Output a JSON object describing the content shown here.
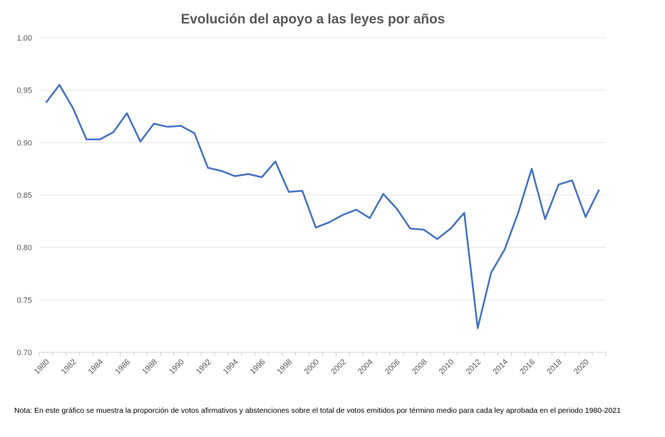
{
  "chart_data": {
    "type": "line",
    "title": "Evolución del apoyo a las leyes por años",
    "xlabel": "",
    "ylabel": "",
    "ylim": [
      0.7,
      1.0
    ],
    "xlim": [
      1980,
      2021
    ],
    "yticks": [
      "1.00",
      "0.95",
      "0.90",
      "0.85",
      "0.80",
      "0.75",
      "0.70"
    ],
    "xticks": [
      "1980",
      "1982",
      "1984",
      "1986",
      "1988",
      "1990",
      "1992",
      "1994",
      "1996",
      "1998",
      "2000",
      "2002",
      "2004",
      "2006",
      "2008",
      "2010",
      "2012",
      "2014",
      "2016",
      "2018",
      "2020"
    ],
    "grid": true,
    "legend": "none",
    "line_color": "#4472C4",
    "series": [
      {
        "x": [
          1980,
          1981,
          1982,
          1983,
          1984,
          1985,
          1986,
          1987,
          1988,
          1989,
          1990,
          1991,
          1992,
          1993,
          1994,
          1995,
          1996,
          1997,
          1998,
          1999,
          2000,
          2001,
          2002,
          2003,
          2004,
          2005,
          2006,
          2007,
          2008,
          2009,
          2010,
          2011,
          2012,
          2013,
          2014,
          2015,
          2016,
          2017,
          2018,
          2019,
          2020,
          2021
        ],
        "values": [
          0.938,
          0.955,
          0.933,
          0.903,
          0.903,
          0.91,
          0.928,
          0.901,
          0.918,
          0.915,
          0.916,
          0.909,
          0.876,
          0.873,
          0.868,
          0.87,
          0.867,
          0.882,
          0.853,
          0.854,
          0.819,
          0.824,
          0.831,
          0.836,
          0.828,
          0.851,
          0.837,
          0.818,
          0.817,
          0.808,
          0.818,
          0.833,
          0.723,
          0.776,
          0.798,
          0.833,
          0.875,
          0.827,
          0.86,
          0.864,
          0.829,
          0.855
        ]
      }
    ]
  },
  "note": "Nota: En este gráfico se muestra la proporción de votos afirmativos y abstenciones sobre el total de votos emitidos por término medio para cada ley aprobada en el periodo 1980-2021"
}
